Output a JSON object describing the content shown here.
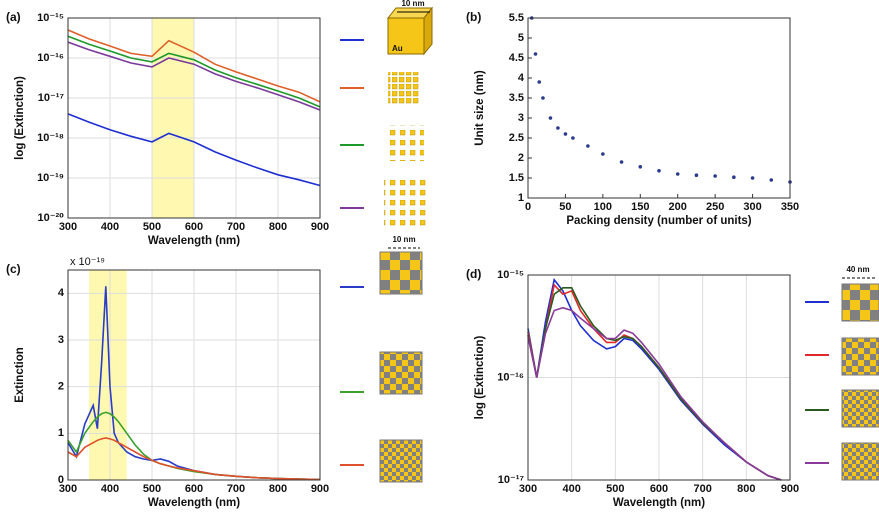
{
  "chart_data": [
    {
      "type": "line",
      "panel_label": "(a)",
      "xlabel": "Wavelength (nm)",
      "ylabel": "log (Extinction)",
      "log_y": true,
      "grid": true,
      "highlight": [
        500,
        600
      ],
      "annotations": [
        "10 nm",
        "Au"
      ],
      "xlim": [
        300,
        900
      ],
      "xticks": [
        300,
        400,
        500,
        600,
        700,
        800,
        900
      ],
      "ylim": [
        1e-20,
        1e-15
      ],
      "yticks": [
        {
          "value": 1e-20,
          "label": "10⁻²⁰"
        },
        {
          "value": 1e-19,
          "label": "10⁻¹⁹"
        },
        {
          "value": 1e-18,
          "label": "10⁻¹⁸"
        },
        {
          "value": 1e-17,
          "label": "10⁻¹⁷"
        },
        {
          "value": 1e-16,
          "label": "10⁻¹⁶"
        },
        {
          "value": 1e-15,
          "label": "10⁻¹⁵"
        }
      ],
      "x": [
        300,
        350,
        400,
        450,
        500,
        540,
        600,
        650,
        700,
        750,
        800,
        850,
        900
      ],
      "series": [
        {
          "color": "#1f2fd0",
          "values": [
            4e-18,
            2.5e-18,
            1.6e-18,
            1.1e-18,
            8e-19,
            1.3e-18,
            8e-19,
            4.5e-19,
            2.8e-19,
            1.8e-19,
            1.2e-19,
            9e-20,
            6.5e-20
          ]
        },
        {
          "color": "#e0602a",
          "values": [
            5e-16,
            3e-16,
            2e-16,
            1.3e-16,
            1.1e-16,
            2.7e-16,
            1.4e-16,
            7e-17,
            4.5e-17,
            3e-17,
            2e-17,
            1.4e-17,
            8e-18
          ]
        },
        {
          "color": "#1e9a2a",
          "values": [
            3.5e-16,
            2.2e-16,
            1.5e-16,
            1e-16,
            8e-17,
            1.3e-16,
            9e-17,
            5e-17,
            3.2e-17,
            2.2e-17,
            1.5e-17,
            1e-17,
            6e-18
          ]
        },
        {
          "color": "#7a3b9a",
          "values": [
            2.5e-16,
            1.6e-16,
            1.1e-16,
            7.5e-17,
            6e-17,
            1e-16,
            7e-17,
            4e-17,
            2.6e-17,
            1.8e-17,
            1.2e-17,
            8e-18,
            5e-18
          ]
        }
      ]
    },
    {
      "type": "scatter",
      "panel_label": "(b)",
      "xlabel": "Packing density (number of units)",
      "ylabel": "Unit size (nm)",
      "log_y": false,
      "grid": false,
      "xlim": [
        0,
        350
      ],
      "xticks": [
        0,
        50,
        100,
        150,
        200,
        250,
        300,
        350
      ],
      "ylim": [
        1,
        5.5
      ],
      "yticks": [
        1,
        1.5,
        2,
        2.5,
        3,
        3.5,
        4,
        4.5,
        5,
        5.5
      ],
      "x": [
        5,
        10,
        15,
        20,
        30,
        40,
        50,
        60,
        80,
        100,
        125,
        150,
        175,
        200,
        225,
        250,
        275,
        300,
        325,
        350
      ],
      "series": [
        {
          "color": "#2b3a8c",
          "values": [
            5.5,
            4.6,
            3.9,
            3.5,
            3.0,
            2.75,
            2.6,
            2.5,
            2.3,
            2.1,
            1.9,
            1.78,
            1.68,
            1.6,
            1.57,
            1.55,
            1.52,
            1.5,
            1.45,
            1.4
          ]
        }
      ]
    },
    {
      "type": "line",
      "panel_label": "(c)",
      "xlabel": "Wavelength (nm)",
      "ylabel": "Extinction",
      "log_y": false,
      "grid": true,
      "highlight": [
        350,
        440
      ],
      "annotations": [
        "x 10⁻¹⁹",
        "10 nm"
      ],
      "xlim": [
        300,
        900
      ],
      "xticks": [
        300,
        400,
        500,
        600,
        700,
        800,
        900
      ],
      "ylim": [
        0,
        4.5
      ],
      "yticks": [
        0,
        1,
        2,
        3,
        4
      ],
      "x": [
        300,
        320,
        340,
        360,
        370,
        380,
        390,
        400,
        410,
        420,
        440,
        460,
        480,
        500,
        520,
        540,
        560,
        600,
        650,
        700,
        750,
        800,
        850,
        900
      ],
      "series": [
        {
          "color": "#2a3cc8",
          "values": [
            0.8,
            0.5,
            1.2,
            1.6,
            1.1,
            2.5,
            4.15,
            2.0,
            1.0,
            0.8,
            0.6,
            0.5,
            0.45,
            0.42,
            0.45,
            0.4,
            0.3,
            0.2,
            0.12,
            0.08,
            0.05,
            0.03,
            0.02,
            0.01
          ]
        },
        {
          "color": "#3aa02a",
          "values": [
            0.85,
            0.6,
            1.0,
            1.25,
            1.35,
            1.42,
            1.45,
            1.42,
            1.35,
            1.25,
            1.0,
            0.75,
            0.55,
            0.42,
            0.35,
            0.3,
            0.25,
            0.18,
            0.12,
            0.08,
            0.05,
            0.03,
            0.02,
            0.01
          ]
        },
        {
          "color": "#e0502a",
          "values": [
            0.6,
            0.5,
            0.7,
            0.8,
            0.85,
            0.88,
            0.9,
            0.88,
            0.85,
            0.8,
            0.7,
            0.6,
            0.5,
            0.42,
            0.35,
            0.3,
            0.26,
            0.2,
            0.12,
            0.08,
            0.05,
            0.03,
            0.02,
            0.01
          ]
        }
      ]
    },
    {
      "type": "line",
      "panel_label": "(d)",
      "xlabel": "Wavelength (nm)",
      "ylabel": "log (Extinction)",
      "log_y": true,
      "grid": true,
      "annotations": [
        "40 nm"
      ],
      "xlim": [
        300,
        900
      ],
      "xticks": [
        300,
        400,
        500,
        600,
        700,
        800,
        900
      ],
      "ylim": [
        1e-17,
        1e-15
      ],
      "yticks": [
        {
          "value": 1e-17,
          "label": "10⁻¹⁷"
        },
        {
          "value": 1e-16,
          "label": "10⁻¹⁶"
        },
        {
          "value": 1e-15,
          "label": "10⁻¹⁵"
        }
      ],
      "x": [
        300,
        320,
        340,
        360,
        380,
        400,
        420,
        450,
        480,
        500,
        520,
        540,
        560,
        600,
        650,
        700,
        750,
        800,
        850,
        880
      ],
      "series": [
        {
          "color": "#1f2fd0",
          "values": [
            3e-16,
            1e-16,
            3.5e-16,
            9e-16,
            7e-16,
            4.5e-16,
            3.2e-16,
            2.3e-16,
            1.9e-16,
            2e-16,
            2.4e-16,
            2.3e-16,
            1.9e-16,
            1.2e-16,
            6e-17,
            3.5e-17,
            2.2e-17,
            1.5e-17,
            1.1e-17,
            1e-17
          ]
        },
        {
          "color": "#e02a2a",
          "values": [
            2.8e-16,
            1e-16,
            3e-16,
            8e-16,
            6.5e-16,
            7e-16,
            4.5e-16,
            3e-16,
            2.2e-16,
            2.2e-16,
            2.6e-16,
            2.4e-16,
            2e-16,
            1.25e-16,
            6.2e-17,
            3.6e-17,
            2.3e-17,
            1.5e-17,
            1.1e-17,
            1e-17
          ]
        },
        {
          "color": "#2a5a1e",
          "values": [
            2.6e-16,
            1e-16,
            3e-16,
            6.5e-16,
            7.5e-16,
            7.5e-16,
            5e-16,
            3.2e-16,
            2.4e-16,
            2.3e-16,
            2.5e-16,
            2.4e-16,
            2e-16,
            1.25e-16,
            6.2e-17,
            3.6e-17,
            2.3e-17,
            1.5e-17,
            1.1e-17,
            1e-17
          ]
        },
        {
          "color": "#8a3a9a",
          "values": [
            2.5e-16,
            1e-16,
            2.7e-16,
            4.5e-16,
            4.8e-16,
            4.5e-16,
            3.8e-16,
            3e-16,
            2.4e-16,
            2.4e-16,
            2.9e-16,
            2.7e-16,
            2.2e-16,
            1.35e-16,
            6.5e-17,
            3.7e-17,
            2.3e-17,
            1.5e-17,
            1.1e-17,
            1e-17
          ]
        }
      ]
    }
  ]
}
